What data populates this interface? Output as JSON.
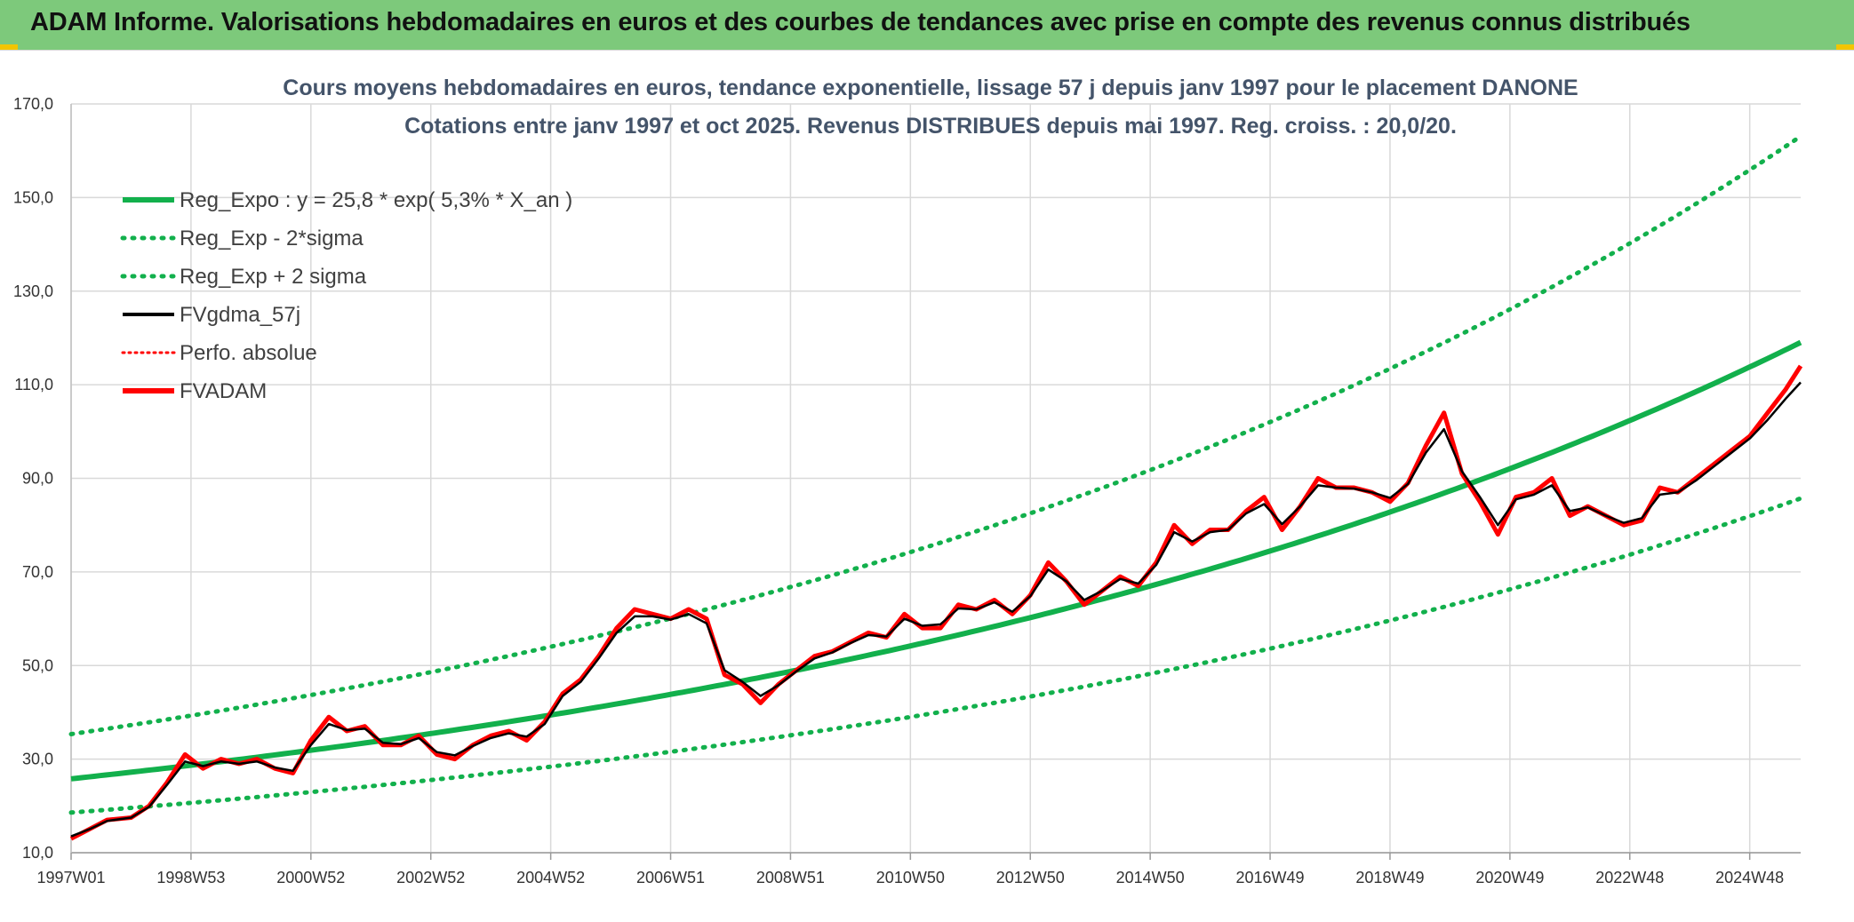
{
  "banner": {
    "title": "ADAM Informe. Valorisations hebdomadaires en euros et des courbes de tendances avec prise en compte des revenus connus distribués"
  },
  "colors": {
    "banner_bg": "#7dc97b",
    "reg_green": "#12b04c",
    "black": "#000000",
    "red": "#ff0000",
    "grid": "#d9d9d9"
  },
  "chart_data": {
    "type": "line",
    "title_line1": "Cours moyens hebdomadaires en euros, tendance exponentielle, lissage 57 j depuis janv 1997 pour le placement DANONE",
    "title_line2": "Cotations entre janv 1997 et oct 2025. Revenus DISTRIBUES depuis mai 1997. Reg. croiss. : 20,0/20.",
    "xlabel": "",
    "ylabel": "",
    "ylim": [
      10,
      170
    ],
    "xlim": [
      1997.0,
      2025.85
    ],
    "y_ticks": [
      "10,0",
      "30,0",
      "50,0",
      "70,0",
      "90,0",
      "110,0",
      "130,0",
      "150,0",
      "170,0"
    ],
    "x_tick_labels": [
      "1997W01",
      "1998W53",
      "2000W52",
      "2002W52",
      "2004W52",
      "2006W51",
      "2008W51",
      "2010W50",
      "2012W50",
      "2014W50",
      "2016W49",
      "2018W49",
      "2020W49",
      "2022W48",
      "2024W48"
    ],
    "x_tick_years": [
      1997.0,
      1999.0,
      2001.0,
      2003.0,
      2005.0,
      2007.0,
      2009.0,
      2011.0,
      2013.0,
      2015.0,
      2017.0,
      2019.0,
      2021.0,
      2023.0,
      2025.0
    ],
    "grid": true,
    "legend_position": "top-left",
    "legend": [
      {
        "name": "Reg_Expo : y = 25,8 * exp( 5,3% *  X_an )",
        "color": "#12b04c",
        "style": "solid"
      },
      {
        "name": "Reg_Exp - 2*sigma",
        "color": "#12b04c",
        "style": "dotted"
      },
      {
        "name": "Reg_Exp + 2 sigma",
        "color": "#12b04c",
        "style": "dotted"
      },
      {
        "name": "FVgdma_57j",
        "color": "#000000",
        "style": "solid"
      },
      {
        "name": "Perfo. absolue",
        "color": "#ff0000",
        "style": "dotted"
      },
      {
        "name": "FVADAM",
        "color": "#ff0000",
        "style": "solid"
      }
    ],
    "regression": {
      "a": 25.8,
      "rate": 0.053,
      "lower_factor": 0.72,
      "upper_factor": 1.37
    },
    "series": [
      {
        "name": "FVADAM",
        "x": [
          1997.0,
          1997.3,
          1997.6,
          1998.0,
          1998.3,
          1998.6,
          1998.9,
          1999.2,
          1999.5,
          1999.8,
          2000.1,
          2000.4,
          2000.7,
          2001.0,
          2001.3,
          2001.6,
          2001.9,
          2002.2,
          2002.5,
          2002.8,
          2003.1,
          2003.4,
          2003.7,
          2004.0,
          2004.3,
          2004.6,
          2004.9,
          2005.2,
          2005.5,
          2005.8,
          2006.1,
          2006.4,
          2006.7,
          2007.0,
          2007.3,
          2007.6,
          2007.9,
          2008.2,
          2008.5,
          2008.8,
          2009.1,
          2009.4,
          2009.7,
          2010.0,
          2010.3,
          2010.6,
          2010.9,
          2011.2,
          2011.5,
          2011.8,
          2012.1,
          2012.4,
          2012.7,
          2013.0,
          2013.3,
          2013.6,
          2013.9,
          2014.2,
          2014.5,
          2014.8,
          2015.1,
          2015.4,
          2015.7,
          2016.0,
          2016.3,
          2016.6,
          2016.9,
          2017.2,
          2017.5,
          2017.8,
          2018.1,
          2018.4,
          2018.7,
          2019.0,
          2019.3,
          2019.6,
          2019.9,
          2020.2,
          2020.5,
          2020.8,
          2021.1,
          2021.4,
          2021.7,
          2022.0,
          2022.3,
          2022.6,
          2022.9,
          2023.2,
          2023.5,
          2023.8,
          2024.1,
          2024.4,
          2024.7,
          2025.0,
          2025.3,
          2025.6,
          2025.85
        ],
        "values": [
          13,
          15,
          17,
          17.5,
          20,
          25,
          31,
          28,
          30,
          29,
          30,
          28,
          27,
          34,
          39,
          36,
          37,
          33,
          33,
          35,
          31,
          30,
          33,
          35,
          36,
          34,
          38,
          44,
          47,
          52,
          58,
          62,
          61,
          60,
          62,
          60,
          48,
          46,
          42,
          46,
          49,
          52,
          53,
          55,
          57,
          56,
          61,
          58,
          58,
          63,
          62,
          64,
          61,
          65,
          72,
          68,
          63,
          66,
          69,
          67,
          72,
          80,
          76,
          79,
          79,
          83,
          86,
          79,
          84,
          90,
          88,
          88,
          87,
          85,
          89,
          97,
          104,
          91,
          85,
          78,
          86,
          87,
          90,
          82,
          84,
          82,
          80,
          81,
          88,
          87,
          90,
          93,
          96,
          99,
          104,
          109,
          114
        ]
      },
      {
        "name": "FVgdma_57j",
        "x": [
          1997.0,
          1997.3,
          1997.6,
          1998.0,
          1998.3,
          1998.6,
          1998.9,
          1999.2,
          1999.5,
          1999.8,
          2000.1,
          2000.4,
          2000.7,
          2001.0,
          2001.3,
          2001.6,
          2001.9,
          2002.2,
          2002.5,
          2002.8,
          2003.1,
          2003.4,
          2003.7,
          2004.0,
          2004.3,
          2004.6,
          2004.9,
          2005.2,
          2005.5,
          2005.8,
          2006.1,
          2006.4,
          2006.7,
          2007.0,
          2007.3,
          2007.6,
          2007.9,
          2008.2,
          2008.5,
          2008.8,
          2009.1,
          2009.4,
          2009.7,
          2010.0,
          2010.3,
          2010.6,
          2010.9,
          2011.2,
          2011.5,
          2011.8,
          2012.1,
          2012.4,
          2012.7,
          2013.0,
          2013.3,
          2013.6,
          2013.9,
          2014.2,
          2014.5,
          2014.8,
          2015.1,
          2015.4,
          2015.7,
          2016.0,
          2016.3,
          2016.6,
          2016.9,
          2017.2,
          2017.5,
          2017.8,
          2018.1,
          2018.4,
          2018.7,
          2019.0,
          2019.3,
          2019.6,
          2019.9,
          2020.2,
          2020.5,
          2020.8,
          2021.1,
          2021.4,
          2021.7,
          2022.0,
          2022.3,
          2022.6,
          2022.9,
          2023.2,
          2023.5,
          2023.8,
          2024.1,
          2024.4,
          2024.7,
          2025.0,
          2025.3,
          2025.6,
          2025.85
        ],
        "values": [
          13.5,
          15,
          16.8,
          17.5,
          19.8,
          24.5,
          29.5,
          28.5,
          29.5,
          29,
          29.5,
          28.2,
          27.5,
          33,
          37.5,
          36.2,
          36.5,
          33.5,
          33.2,
          34.5,
          31.5,
          30.8,
          32.8,
          34.5,
          35.5,
          34.8,
          37.5,
          43.5,
          46.5,
          51.5,
          57,
          60.5,
          60.5,
          59.8,
          61,
          59,
          49,
          46.5,
          43.5,
          45.8,
          48.8,
          51.5,
          52.8,
          54.8,
          56.5,
          56.2,
          60,
          58.5,
          58.8,
          62.2,
          62,
          63.5,
          61.5,
          64.8,
          70.5,
          68,
          64,
          66,
          68.5,
          67.5,
          71.5,
          78.5,
          76.5,
          78.5,
          79,
          82.5,
          84.5,
          80.2,
          84,
          88.5,
          88,
          87.8,
          87,
          85.8,
          88.8,
          95.5,
          100.5,
          91.5,
          86,
          80,
          85.5,
          86.5,
          88.5,
          83,
          83.8,
          82,
          80.5,
          81.5,
          86.5,
          87,
          89.5,
          92.5,
          95.5,
          98.5,
          102.5,
          107,
          110.5
        ]
      }
    ]
  }
}
